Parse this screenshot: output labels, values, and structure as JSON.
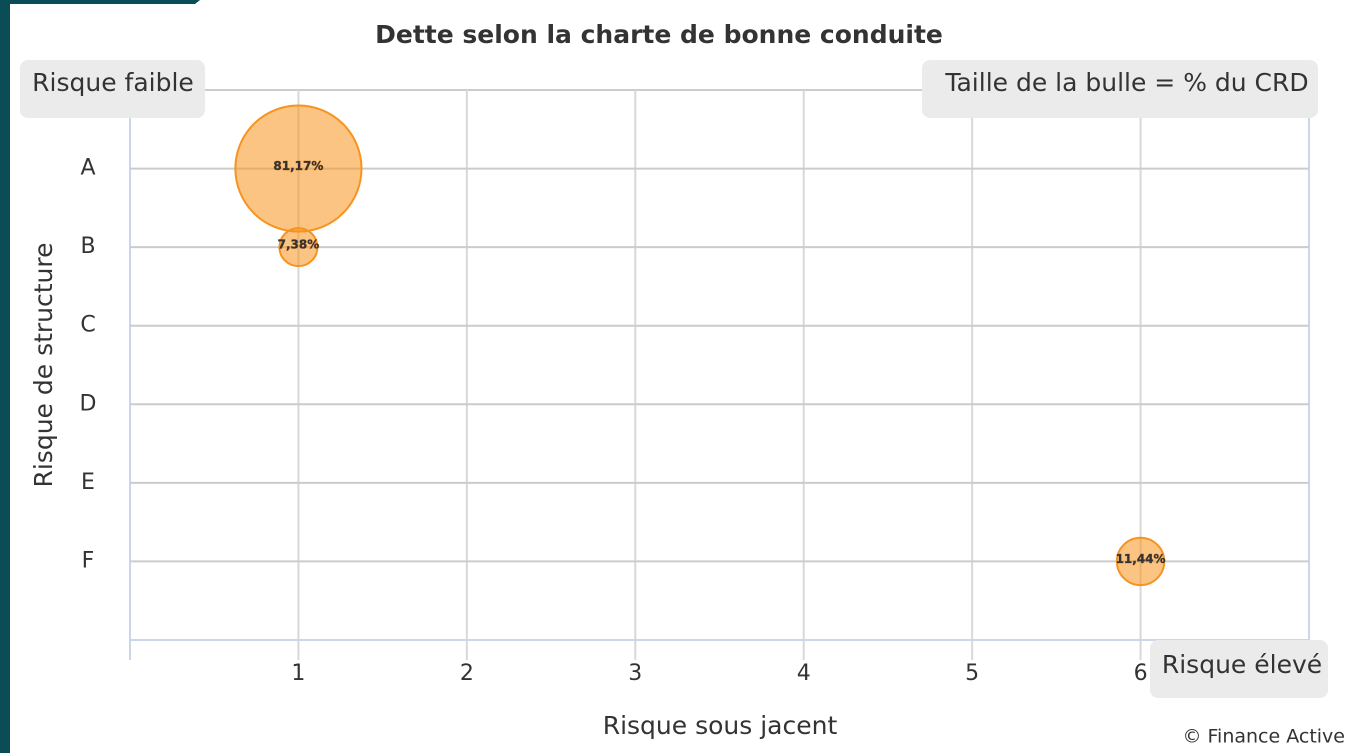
{
  "chart_data": {
    "type": "bubble",
    "title": "Dette selon la charte de bonne conduite",
    "annotations": [
      "Risque faible",
      "Taille de la bulle = % du CRD",
      "Risque élevé"
    ],
    "xlabel": "Risque sous jacent",
    "ylabel": "Risque de structure",
    "credit": "© Finance Active",
    "xlim": [
      0,
      7
    ],
    "xticks": [
      1,
      2,
      3,
      4,
      5,
      6
    ],
    "ylim": [
      7,
      0
    ],
    "yticks": [
      {
        "value": 1,
        "label": "A"
      },
      {
        "value": 2,
        "label": "B"
      },
      {
        "value": 3,
        "label": "C"
      },
      {
        "value": 4,
        "label": "D"
      },
      {
        "value": 5,
        "label": "E"
      },
      {
        "value": 6,
        "label": "F"
      }
    ],
    "grid": true,
    "series": [
      {
        "color": "#f7931e",
        "x": [
          1,
          1,
          6
        ],
        "values": [
          1,
          2,
          6
        ],
        "sizes": [
          81.17,
          7.38,
          11.44
        ],
        "value_labels": [
          "81,17%",
          "7,38%",
          "11,44%"
        ]
      }
    ]
  }
}
